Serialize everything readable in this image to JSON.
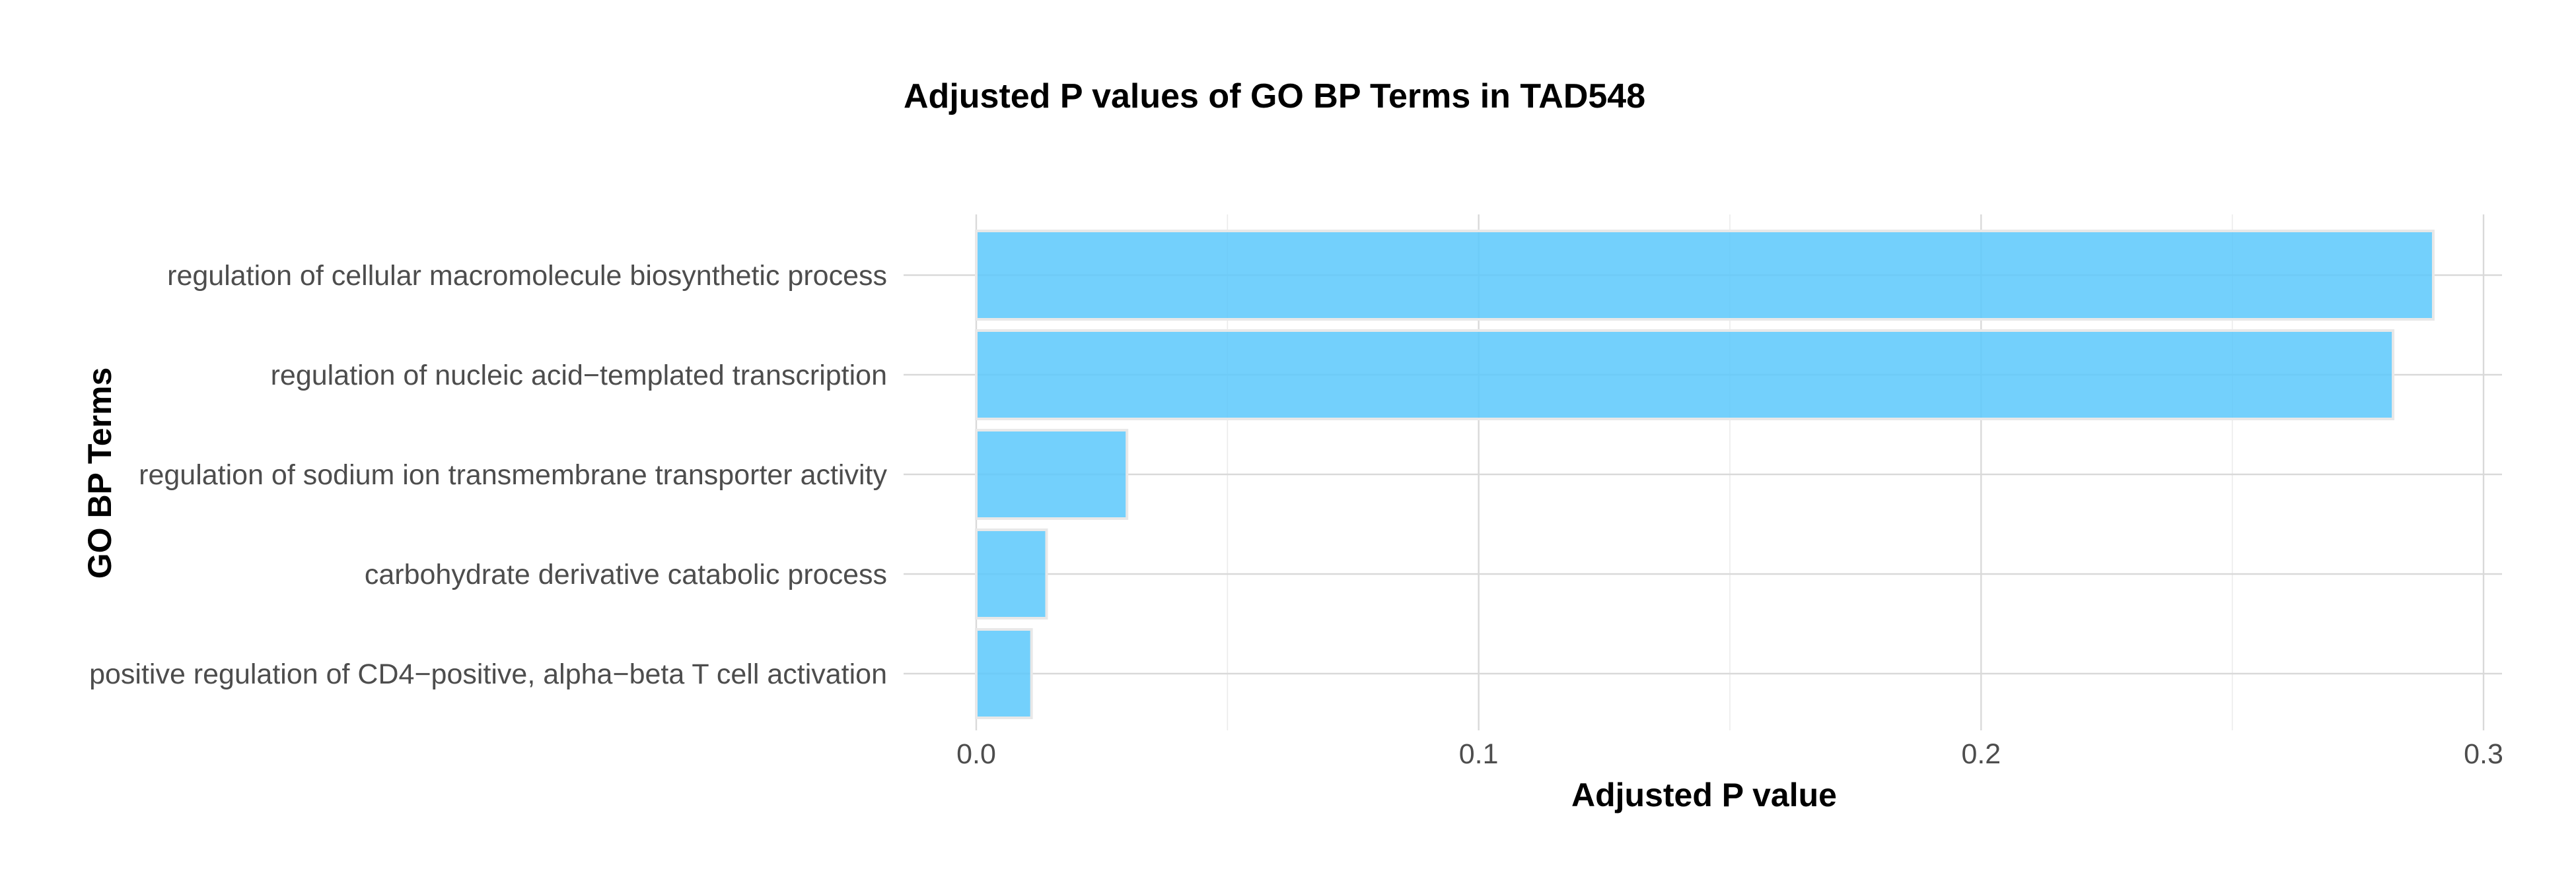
{
  "chart_data": {
    "type": "bar",
    "orientation": "horizontal",
    "title": "Adjusted P values of GO BP Terms in TAD548",
    "xlabel": "Adjusted P value",
    "ylabel": "GO BP Terms",
    "categories": [
      "regulation of cellular macromolecule biosynthetic process",
      "regulation of nucleic acid−templated transcription",
      "regulation of sodium ion transmembrane transporter activity",
      "carbohydrate derivative catabolic process",
      "positive regulation of CD4−positive, alpha−beta T cell activation"
    ],
    "values": [
      0.29,
      0.282,
      0.03,
      0.014,
      0.011
    ],
    "xlim": [
      0,
      0.3
    ],
    "xticks": [
      0.0,
      0.1,
      0.2,
      0.3
    ],
    "xtick_labels": [
      "0.0",
      "0.1",
      "0.2",
      "0.3"
    ],
    "grid": true,
    "legend": "none",
    "bar_color": "#5BC8FC",
    "bar_edge_color": "#E8E8E8",
    "grid_color": "#D9D9D9",
    "tick_color": "#4D4D4D"
  }
}
